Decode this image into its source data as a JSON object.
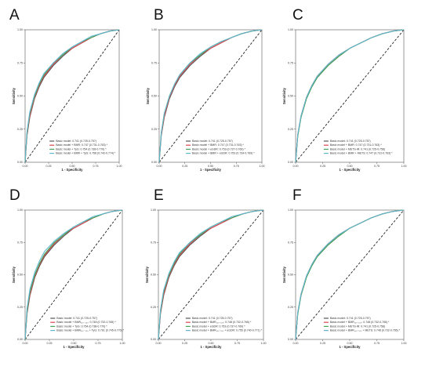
{
  "chart_data": [
    {
      "type": "line",
      "panel": "A",
      "xlabel": "1 - Specificity",
      "ylabel": "Sensitivity",
      "xlim": [
        0,
        1
      ],
      "ylim": [
        0,
        1
      ],
      "xticks": [
        "0.00",
        "0.25",
        "0.50",
        "0.75",
        "1.00"
      ],
      "yticks": [
        "0.00",
        "0.25",
        "0.50",
        "0.75",
        "1.00"
      ],
      "reference_line": "diagonal-dashed",
      "legend_position": "bottom-right",
      "series": [
        {
          "name": "Basic model: 0.741 (0.725-0.757)",
          "color": "#555555",
          "x": [
            0,
            0.02,
            0.05,
            0.1,
            0.15,
            0.2,
            0.3,
            0.4,
            0.5,
            0.6,
            0.7,
            0.8,
            0.9,
            1
          ],
          "y": [
            0,
            0.2,
            0.34,
            0.48,
            0.57,
            0.64,
            0.73,
            0.8,
            0.86,
            0.9,
            0.94,
            0.97,
            0.99,
            1
          ]
        },
        {
          "name": "Basic model + BMR: 0.747 (0.731-0.763) *",
          "color": "#d9454c",
          "x": [
            0,
            0.02,
            0.05,
            0.1,
            0.15,
            0.2,
            0.3,
            0.4,
            0.5,
            0.6,
            0.7,
            0.8,
            0.9,
            1
          ],
          "y": [
            0,
            0.21,
            0.35,
            0.49,
            0.58,
            0.65,
            0.74,
            0.81,
            0.86,
            0.9,
            0.94,
            0.97,
            0.99,
            1
          ]
        },
        {
          "name": "Basic model + TyG: 0.754 (0.738-0.770) *",
          "color": "#46a35a",
          "x": [
            0,
            0.02,
            0.05,
            0.1,
            0.15,
            0.2,
            0.3,
            0.4,
            0.5,
            0.6,
            0.7,
            0.8,
            0.9,
            1
          ],
          "y": [
            0,
            0.22,
            0.37,
            0.5,
            0.59,
            0.66,
            0.75,
            0.81,
            0.87,
            0.91,
            0.94,
            0.97,
            0.99,
            1
          ]
        },
        {
          "name": "Basic model + BMR + TyG: 0.758 (0.742-0.774) *",
          "color": "#5fb8ce",
          "x": [
            0,
            0.02,
            0.05,
            0.1,
            0.15,
            0.2,
            0.3,
            0.4,
            0.5,
            0.6,
            0.7,
            0.8,
            0.9,
            1
          ],
          "y": [
            0,
            0.23,
            0.38,
            0.51,
            0.6,
            0.67,
            0.75,
            0.82,
            0.87,
            0.91,
            0.95,
            0.97,
            0.99,
            1
          ]
        }
      ]
    },
    {
      "type": "line",
      "panel": "B",
      "xlabel": "1 - Specificity",
      "ylabel": "Sensitivity",
      "xlim": [
        0,
        1
      ],
      "ylim": [
        0,
        1
      ],
      "xticks": [
        "0.00",
        "0.25",
        "0.50",
        "0.75",
        "1.00"
      ],
      "yticks": [
        "0.00",
        "0.25",
        "0.50",
        "0.75",
        "1.00"
      ],
      "reference_line": "diagonal-dashed",
      "legend_position": "bottom-right",
      "series": [
        {
          "name": "Basic model: 0.741 (0.725-0.757)",
          "color": "#555555",
          "x": [
            0,
            0.02,
            0.05,
            0.1,
            0.15,
            0.2,
            0.3,
            0.4,
            0.5,
            0.6,
            0.7,
            0.8,
            0.9,
            1
          ],
          "y": [
            0,
            0.2,
            0.34,
            0.48,
            0.57,
            0.64,
            0.73,
            0.8,
            0.86,
            0.9,
            0.94,
            0.97,
            0.99,
            1
          ]
        },
        {
          "name": "Basic model + BMR: 0.747 (0.731-0.763) *",
          "color": "#d9454c",
          "x": [
            0,
            0.02,
            0.05,
            0.1,
            0.15,
            0.2,
            0.3,
            0.4,
            0.5,
            0.6,
            0.7,
            0.8,
            0.9,
            1
          ],
          "y": [
            0,
            0.21,
            0.35,
            0.49,
            0.58,
            0.65,
            0.74,
            0.81,
            0.86,
            0.9,
            0.94,
            0.97,
            0.99,
            1
          ]
        },
        {
          "name": "Basic model + eGDR: 0.753 (0.737-0.769) *",
          "color": "#46a35a",
          "x": [
            0,
            0.02,
            0.05,
            0.1,
            0.15,
            0.2,
            0.3,
            0.4,
            0.5,
            0.6,
            0.7,
            0.8,
            0.9,
            1
          ],
          "y": [
            0,
            0.22,
            0.37,
            0.5,
            0.59,
            0.66,
            0.75,
            0.81,
            0.87,
            0.91,
            0.94,
            0.97,
            0.99,
            1
          ]
        },
        {
          "name": "Basic model + BMR + eGDR: 0.753 (0.734-0.769) *",
          "color": "#5fb8ce",
          "x": [
            0,
            0.02,
            0.05,
            0.1,
            0.15,
            0.2,
            0.3,
            0.4,
            0.5,
            0.6,
            0.7,
            0.8,
            0.9,
            1
          ],
          "y": [
            0,
            0.22,
            0.37,
            0.5,
            0.59,
            0.66,
            0.75,
            0.82,
            0.87,
            0.91,
            0.94,
            0.97,
            0.99,
            1
          ]
        }
      ]
    },
    {
      "type": "line",
      "panel": "C",
      "xlabel": "1 - Specificity",
      "ylabel": "Sensitivity",
      "xlim": [
        0,
        1
      ],
      "ylim": [
        0,
        1
      ],
      "xticks": [
        "0.00",
        "0.25",
        "0.50",
        "0.75",
        "1.00"
      ],
      "yticks": [
        "0.00",
        "0.25",
        "0.50",
        "0.75",
        "1.00"
      ],
      "reference_line": "diagonal-dashed",
      "legend_position": "bottom-right",
      "series": [
        {
          "name": "Basic model: 0.741 (0.725-0.757)",
          "color": "#555555",
          "x": [
            0,
            0.02,
            0.05,
            0.1,
            0.15,
            0.2,
            0.3,
            0.4,
            0.5,
            0.6,
            0.7,
            0.8,
            0.9,
            1
          ],
          "y": [
            0,
            0.2,
            0.34,
            0.48,
            0.57,
            0.64,
            0.73,
            0.8,
            0.86,
            0.9,
            0.94,
            0.97,
            0.99,
            1
          ]
        },
        {
          "name": "Basic model + BMR: 0.747 (0.731-0.763) *",
          "color": "#d9454c",
          "x": [
            0,
            0.02,
            0.05,
            0.1,
            0.15,
            0.2,
            0.3,
            0.4,
            0.5,
            0.6,
            0.7,
            0.8,
            0.9,
            1
          ],
          "y": [
            0,
            0.21,
            0.35,
            0.49,
            0.58,
            0.65,
            0.74,
            0.81,
            0.86,
            0.9,
            0.94,
            0.97,
            0.99,
            1
          ]
        },
        {
          "name": "Basic model + METS-IR: 0.741 (0.725-0.758)",
          "color": "#46a35a",
          "x": [
            0,
            0.02,
            0.05,
            0.1,
            0.15,
            0.2,
            0.3,
            0.4,
            0.5,
            0.6,
            0.7,
            0.8,
            0.9,
            1
          ],
          "y": [
            0,
            0.2,
            0.34,
            0.48,
            0.57,
            0.64,
            0.73,
            0.8,
            0.86,
            0.9,
            0.94,
            0.97,
            0.99,
            1
          ]
        },
        {
          "name": "Basic model + BMR + METS: 0.747 (0.731-0.763) *",
          "color": "#5fb8ce",
          "x": [
            0,
            0.02,
            0.05,
            0.1,
            0.15,
            0.2,
            0.3,
            0.4,
            0.5,
            0.6,
            0.7,
            0.8,
            0.9,
            1
          ],
          "y": [
            0,
            0.21,
            0.35,
            0.49,
            0.58,
            0.65,
            0.74,
            0.81,
            0.86,
            0.9,
            0.94,
            0.97,
            0.99,
            1
          ]
        }
      ]
    },
    {
      "type": "line",
      "panel": "D",
      "xlabel": "1 - Specificity",
      "ylabel": "Sensitivity",
      "xlim": [
        0,
        1
      ],
      "ylim": [
        0,
        1
      ],
      "xticks": [
        "0.00",
        "0.25",
        "0.50",
        "0.75",
        "1.00"
      ],
      "yticks": [
        "0.00",
        "0.25",
        "0.50",
        "0.75",
        "1.00"
      ],
      "reference_line": "diagonal-dashed",
      "legend_position": "bottom-right",
      "series": [
        {
          "name": "Basic model: 0.741 (0.725-0.757)",
          "color": "#555555",
          "x": [
            0,
            0.02,
            0.05,
            0.1,
            0.15,
            0.2,
            0.3,
            0.4,
            0.5,
            0.6,
            0.7,
            0.8,
            0.9,
            1
          ],
          "y": [
            0,
            0.2,
            0.34,
            0.48,
            0.57,
            0.64,
            0.73,
            0.8,
            0.86,
            0.9,
            0.94,
            0.97,
            0.99,
            1
          ]
        },
        {
          "name": "Basic model + BMR₁₁₀₋₁₂₀: 0.748 (0.732-0.765) *",
          "color": "#d9454c",
          "x": [
            0,
            0.02,
            0.05,
            0.1,
            0.15,
            0.2,
            0.3,
            0.4,
            0.5,
            0.6,
            0.7,
            0.8,
            0.9,
            1
          ],
          "y": [
            0,
            0.21,
            0.35,
            0.49,
            0.58,
            0.65,
            0.74,
            0.81,
            0.86,
            0.9,
            0.94,
            0.97,
            0.99,
            1
          ]
        },
        {
          "name": "Basic model + TyG: 0.754 (0.738-0.770) *",
          "color": "#46a35a",
          "x": [
            0,
            0.02,
            0.05,
            0.1,
            0.15,
            0.2,
            0.3,
            0.4,
            0.5,
            0.6,
            0.7,
            0.8,
            0.9,
            1
          ],
          "y": [
            0,
            0.22,
            0.37,
            0.5,
            0.59,
            0.66,
            0.75,
            0.81,
            0.87,
            0.91,
            0.94,
            0.97,
            0.99,
            1
          ]
        },
        {
          "name": "Basic model + BMR₁₁₀₋₁₂₀ + TyG: 0.761 (0.745-0.776) *",
          "color": "#5fb8ce",
          "x": [
            0,
            0.02,
            0.05,
            0.1,
            0.15,
            0.2,
            0.3,
            0.4,
            0.5,
            0.6,
            0.7,
            0.8,
            0.9,
            1
          ],
          "y": [
            0,
            0.24,
            0.39,
            0.52,
            0.61,
            0.68,
            0.76,
            0.82,
            0.87,
            0.91,
            0.95,
            0.97,
            0.99,
            1
          ]
        }
      ]
    },
    {
      "type": "line",
      "panel": "E",
      "xlabel": "1 - Specificity",
      "ylabel": "Sensitivity",
      "xlim": [
        0,
        1
      ],
      "ylim": [
        0,
        1
      ],
      "xticks": [
        "0.00",
        "0.25",
        "0.50",
        "0.75",
        "1.00"
      ],
      "yticks": [
        "0.00",
        "0.25",
        "0.50",
        "0.75",
        "1.00"
      ],
      "reference_line": "diagonal-dashed",
      "legend_position": "bottom-right",
      "series": [
        {
          "name": "Basic model: 0.741 (0.725-0.757)",
          "color": "#555555",
          "x": [
            0,
            0.02,
            0.05,
            0.1,
            0.15,
            0.2,
            0.3,
            0.4,
            0.5,
            0.6,
            0.7,
            0.8,
            0.9,
            1
          ],
          "y": [
            0,
            0.2,
            0.34,
            0.48,
            0.57,
            0.64,
            0.73,
            0.8,
            0.86,
            0.9,
            0.94,
            0.97,
            0.99,
            1
          ]
        },
        {
          "name": "Basic model + BMR₁₁₀₋₁₂₀: 0.748 (0.732-0.765) *",
          "color": "#d9454c",
          "x": [
            0,
            0.02,
            0.05,
            0.1,
            0.15,
            0.2,
            0.3,
            0.4,
            0.5,
            0.6,
            0.7,
            0.8,
            0.9,
            1
          ],
          "y": [
            0,
            0.21,
            0.35,
            0.49,
            0.58,
            0.65,
            0.74,
            0.81,
            0.86,
            0.9,
            0.94,
            0.97,
            0.99,
            1
          ]
        },
        {
          "name": "Basic model + eGDR: 0.753 (0.737-0.769) *",
          "color": "#46a35a",
          "x": [
            0,
            0.02,
            0.05,
            0.1,
            0.15,
            0.2,
            0.3,
            0.4,
            0.5,
            0.6,
            0.7,
            0.8,
            0.9,
            1
          ],
          "y": [
            0,
            0.22,
            0.37,
            0.5,
            0.59,
            0.66,
            0.75,
            0.81,
            0.87,
            0.91,
            0.94,
            0.97,
            0.99,
            1
          ]
        },
        {
          "name": "Basic model + BMR₁₁₀₋₁₂₀ + eGDR: 0.755 (0.740-0.771) *",
          "color": "#5fb8ce",
          "x": [
            0,
            0.02,
            0.05,
            0.1,
            0.15,
            0.2,
            0.3,
            0.4,
            0.5,
            0.6,
            0.7,
            0.8,
            0.9,
            1
          ],
          "y": [
            0,
            0.23,
            0.38,
            0.51,
            0.6,
            0.67,
            0.75,
            0.82,
            0.87,
            0.91,
            0.95,
            0.97,
            0.99,
            1
          ]
        }
      ]
    },
    {
      "type": "line",
      "panel": "F",
      "xlabel": "1 - Specificity",
      "ylabel": "Sensitivity",
      "xlim": [
        0,
        1
      ],
      "ylim": [
        0,
        1
      ],
      "xticks": [
        "0.00",
        "0.25",
        "0.50",
        "0.75",
        "1.00"
      ],
      "yticks": [
        "0.00",
        "0.25",
        "0.50",
        "0.75",
        "1.00"
      ],
      "reference_line": "diagonal-dashed",
      "legend_position": "bottom-right",
      "series": [
        {
          "name": "Basic model: 0.741 (0.725-0.757)",
          "color": "#555555",
          "x": [
            0,
            0.02,
            0.05,
            0.1,
            0.15,
            0.2,
            0.3,
            0.4,
            0.5,
            0.6,
            0.7,
            0.8,
            0.9,
            1
          ],
          "y": [
            0,
            0.2,
            0.34,
            0.48,
            0.57,
            0.64,
            0.73,
            0.8,
            0.86,
            0.9,
            0.94,
            0.97,
            0.99,
            1
          ]
        },
        {
          "name": "Basic model + BMR₁₁₀₋₁₂₀: 0.748 (0.732-0.765) *",
          "color": "#d9454c",
          "x": [
            0,
            0.02,
            0.05,
            0.1,
            0.15,
            0.2,
            0.3,
            0.4,
            0.5,
            0.6,
            0.7,
            0.8,
            0.9,
            1
          ],
          "y": [
            0,
            0.21,
            0.35,
            0.49,
            0.58,
            0.65,
            0.74,
            0.81,
            0.86,
            0.9,
            0.94,
            0.97,
            0.99,
            1
          ]
        },
        {
          "name": "Basic model + METS-IR: 0.741 (0.725-0.758)",
          "color": "#46a35a",
          "x": [
            0,
            0.02,
            0.05,
            0.1,
            0.15,
            0.2,
            0.3,
            0.4,
            0.5,
            0.6,
            0.7,
            0.8,
            0.9,
            1
          ],
          "y": [
            0,
            0.2,
            0.34,
            0.48,
            0.57,
            0.64,
            0.73,
            0.8,
            0.86,
            0.9,
            0.94,
            0.97,
            0.99,
            1
          ]
        },
        {
          "name": "Basic model + BMR₁₁₀₋₁₂₀ + METS: 0.748 (0.732-0.765) *",
          "color": "#5fb8ce",
          "x": [
            0,
            0.02,
            0.05,
            0.1,
            0.15,
            0.2,
            0.3,
            0.4,
            0.5,
            0.6,
            0.7,
            0.8,
            0.9,
            1
          ],
          "y": [
            0,
            0.21,
            0.35,
            0.49,
            0.58,
            0.65,
            0.74,
            0.81,
            0.86,
            0.9,
            0.94,
            0.97,
            0.99,
            1
          ]
        }
      ]
    }
  ]
}
